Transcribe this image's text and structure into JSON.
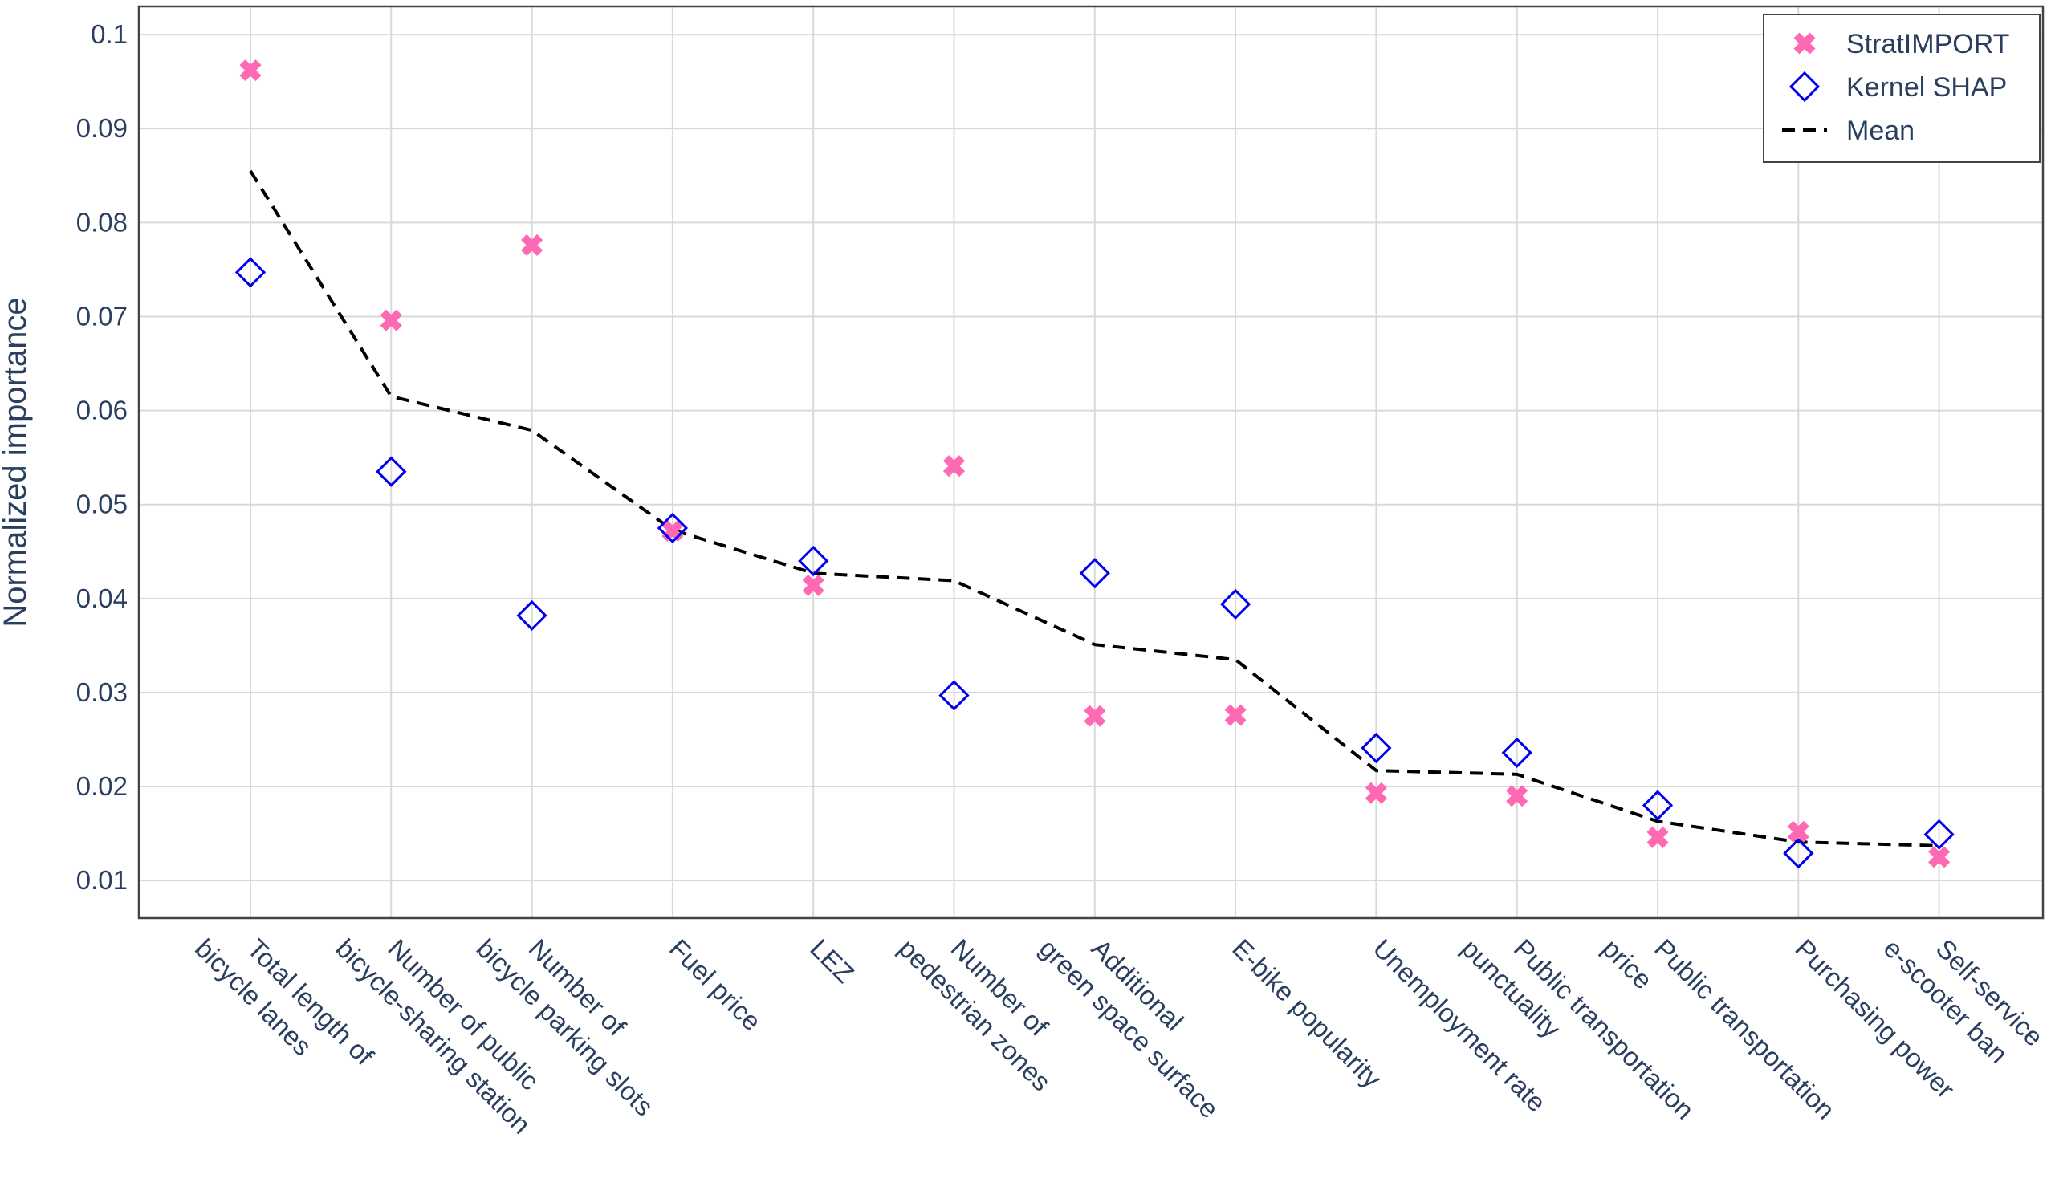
{
  "chart_data": {
    "type": "scatter",
    "ylabel": "Normalized importance",
    "xlabel": "",
    "ylim": [
      0.006,
      0.103
    ],
    "yticks": [
      0.01,
      0.02,
      0.03,
      0.04,
      0.05,
      0.06,
      0.07,
      0.08,
      0.09,
      0.1
    ],
    "ytick_labels": [
      "0.01",
      "0.02",
      "0.03",
      "0.04",
      "0.05",
      "0.06",
      "0.07",
      "0.08",
      "0.09",
      "0.1"
    ],
    "grid": true,
    "legend_position": "top-right",
    "categories": [
      [
        "Total length of",
        "bicycle lanes"
      ],
      [
        "Number of public",
        "bicycle-sharing station"
      ],
      [
        "Number of",
        "bicycle parking slots"
      ],
      [
        "Fuel price"
      ],
      [
        "LEZ"
      ],
      [
        "Number of",
        "pedestrian zones"
      ],
      [
        "Additional",
        "green space surface"
      ],
      [
        "E-bike popularity"
      ],
      [
        "Unemployment rate"
      ],
      [
        "Public transportation",
        "punctuality"
      ],
      [
        "Public transportation",
        "price"
      ],
      [
        "Purchasing power"
      ],
      [
        "Self-service",
        "e-scooter ban"
      ]
    ],
    "series": [
      {
        "name": "StratIMPORT",
        "marker": "x",
        "color": "#ff69b4",
        "values": [
          0.0962,
          0.0696,
          0.0776,
          0.0472,
          0.0414,
          0.0541,
          0.0275,
          0.0276,
          0.0193,
          0.019,
          0.0146,
          0.0152,
          0.0125
        ]
      },
      {
        "name": "Kernel SHAP",
        "marker": "diamond-open",
        "color": "#0000ee",
        "values": [
          0.0747,
          0.0535,
          0.0382,
          0.0475,
          0.044,
          0.0297,
          0.0427,
          0.0394,
          0.0241,
          0.0236,
          0.018,
          0.0129,
          0.0149
        ]
      },
      {
        "name": "Mean",
        "marker": "dash-line",
        "color": "#000000",
        "values": [
          0.0855,
          0.0615,
          0.0579,
          0.0473,
          0.0427,
          0.0419,
          0.0351,
          0.0335,
          0.0217,
          0.0213,
          0.0163,
          0.0141,
          0.0137
        ]
      }
    ]
  }
}
